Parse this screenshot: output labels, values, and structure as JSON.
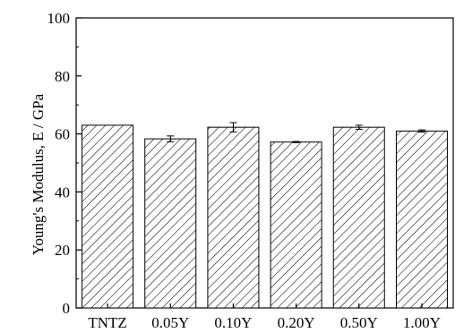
{
  "chart_data": {
    "type": "bar",
    "title": "",
    "xlabel": "",
    "ylabel": "Young's Modulus, E / GPa",
    "ylim": [
      0,
      100
    ],
    "yticks": [
      0,
      20,
      40,
      60,
      80,
      100
    ],
    "categories": [
      "TNTZ",
      "0.05Y",
      "0.10Y",
      "0.20Y",
      "0.50Y",
      "1.00Y"
    ],
    "values": [
      63.0,
      58.3,
      62.3,
      57.2,
      62.3,
      61.0
    ],
    "errors": [
      0.0,
      1.0,
      1.6,
      0.2,
      0.7,
      0.4
    ],
    "bar_fill": "diagonal-hatch",
    "bar_stroke": "#000000",
    "grid": false,
    "legend": "none"
  }
}
